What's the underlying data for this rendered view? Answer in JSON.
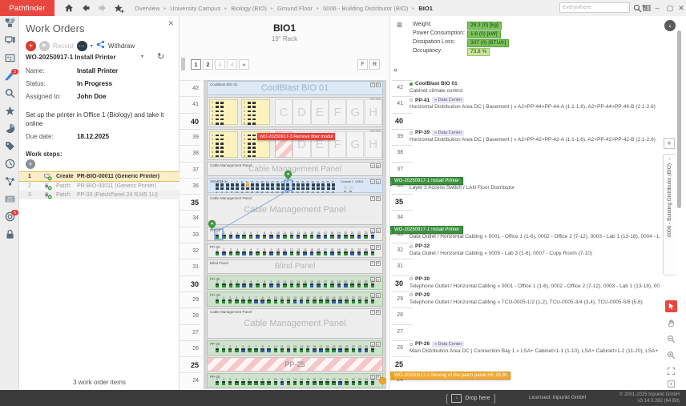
{
  "topbar": {
    "logo": "Pathfinder",
    "breadcrumb": [
      "Overview",
      "University Campus",
      "Biology (BIO)",
      "Ground Floor",
      "0006 - Building Distributor (BIO)",
      "BIO1"
    ],
    "search": {
      "placeholder": "everywhere"
    },
    "window": {
      "help": "?",
      "minimize": "–",
      "maximize": "▢",
      "close": "✕"
    }
  },
  "sidebar": {
    "items": [
      {
        "id": "topology"
      },
      {
        "id": "devices"
      },
      {
        "id": "floorplan"
      },
      {
        "id": "work-orders",
        "badge": "3",
        "active": true
      },
      {
        "id": "search"
      },
      {
        "id": "favorites"
      },
      {
        "id": "reports"
      },
      {
        "id": "tags"
      },
      {
        "id": "history"
      },
      {
        "id": "connections"
      },
      {
        "id": "ip-addresses",
        "text1": "192",
        "text2": "0.0.1"
      },
      {
        "id": "alerts",
        "badge": "6"
      },
      {
        "id": "lock"
      }
    ]
  },
  "work_orders": {
    "title": "Work Orders",
    "close": "✕",
    "toolbar": {
      "add": "+",
      "record": "Record",
      "more": "•••",
      "withdraw": "Withdraw"
    },
    "selected": "WO-20250917-1 Install Printer",
    "refresh": "↻",
    "fields": [
      {
        "label": "Name:",
        "value": "Install Printer"
      },
      {
        "label": "Status:",
        "value": "In Progress"
      },
      {
        "label": "Assigned to:",
        "value": "John Doe"
      }
    ],
    "description": "Set up the printer in Office 1 (Biology) and take it online",
    "due": {
      "label": "Due date:",
      "value": "18.12.2025"
    },
    "steps_label": "Work steps:",
    "steps": [
      {
        "num": "1",
        "icon": "device-create",
        "action": "Create",
        "target": "PR-BIO-00011 (Generic Printer)",
        "selected": true
      },
      {
        "num": "2",
        "icon": "patch",
        "action": "Patch",
        "target": "PR-BIO-00011 (Generic Printer)",
        "selected": false
      },
      {
        "num": "3",
        "icon": "patch",
        "action": "Patch",
        "target": "PP-33 (PatchPanel 24 RJ45 1U)",
        "selected": false
      }
    ],
    "footer": "3 work order items"
  },
  "rack": {
    "title": "BIO1",
    "subtitle": "19\" Rack",
    "pager": [
      {
        "label": "1",
        "state": "selected"
      },
      {
        "label": "2",
        "state": "active"
      },
      {
        "label": "3",
        "state": "muted"
      },
      {
        "label": "4",
        "state": "muted"
      },
      {
        "label": "»",
        "state": "normal"
      }
    ],
    "view_buttons": [
      "F",
      "R"
    ],
    "collapse": "«",
    "module_chips": [
      "F",
      "R"
    ],
    "top_unit": 42,
    "bottom_unit": 24,
    "modules": [
      {
        "u": 42,
        "h": 1,
        "type": "plain",
        "bg": "blue",
        "label": "CoolBlast BIO 01",
        "center": "CoolBlast BIO 01",
        "center_size": 11,
        "center_color": "#9fb5ca"
      },
      {
        "u": 41,
        "h": 2,
        "type": "fiber",
        "letters": [
          "C",
          "D",
          "E",
          "F",
          "G",
          "H"
        ],
        "hatch_first": false
      },
      {
        "u": 39,
        "h": 2,
        "type": "fiber",
        "letters": [
          "D",
          "E",
          "F",
          "G",
          "H"
        ],
        "hatch_first": true,
        "banner": "WO-20250917-3 Remove fiber modul"
      },
      {
        "u": 37,
        "h": 1,
        "type": "plain",
        "bg": "gray",
        "label": "Cable Management Panel",
        "center": "Cable Management Panel",
        "center_size": 10
      },
      {
        "u": 36,
        "h": 1,
        "type": "switch",
        "label": "SW-BIO-1",
        "console_label": "Console 1",
        "usb_label": "USB A",
        "extra_ports": [
          "49",
          "50"
        ],
        "selected_port": 13
      },
      {
        "u": 35,
        "h": 2,
        "type": "plain",
        "bg": "gray",
        "label": "Cable Management Panel",
        "center": "Cable Management Panel",
        "center_size": 11
      },
      {
        "u": 33,
        "h": 1,
        "type": "pp",
        "label": "PP-33",
        "ports": 24,
        "bg": "gray",
        "pattern": "ggbbggbgbbggbggbbgbggbgb",
        "selected_port": 2
      },
      {
        "u": 32,
        "h": 1,
        "type": "pp",
        "label": "PP-32",
        "ports": 24,
        "bg": "gray",
        "pattern": "gbggbbggbgbggbbggbggbbgg"
      },
      {
        "u": 31,
        "h": 1,
        "type": "plain",
        "bg": "gray",
        "label": "Blind Panel",
        "center": "Blind Panel",
        "center_size": 10
      },
      {
        "u": 30,
        "h": 1,
        "type": "pp",
        "label": "PP-30",
        "ports": 24,
        "bg": "green",
        "pattern": "ggggbbggbbggggbbggbbgggg"
      },
      {
        "u": 29,
        "h": 1,
        "type": "pp",
        "label": "PP-29",
        "ports": 25,
        "bg": "green",
        "pattern": "ggggggbbggggbbggggbbggggg"
      },
      {
        "u": 28,
        "h": 2,
        "type": "plain",
        "bg": "gray",
        "label": "Cable Management Panel",
        "center": "Cable Management Panel",
        "center_size": 11
      },
      {
        "u": 26,
        "h": 1,
        "type": "pp",
        "label": "PP-26",
        "ports": 25,
        "bg": "green",
        "pattern": "ggggbggbbggbgggbbggbggbbg"
      },
      {
        "u": 25,
        "h": 1,
        "type": "hatch",
        "center": "PP-25",
        "center_size": 9
      },
      {
        "u": 24,
        "h": 1,
        "type": "pp",
        "label": "PP-25",
        "ports": 25,
        "bg": "green",
        "pattern": "ggggggggggbggggggggbggggg",
        "marker": "orange"
      }
    ]
  },
  "info": {
    "rows": [
      {
        "label": "Weight:",
        "value": "28.3 (0) [kg]",
        "light": false
      },
      {
        "label": "Power Consumption:",
        "value": "1.6 (0) [kW]",
        "light": false
      },
      {
        "label": "Dissipation Loss:",
        "value": "307 (0) [BTU/h]",
        "light": false
      },
      {
        "label": "Occupancy:",
        "value": "73.8 %",
        "light": true
      }
    ]
  },
  "unit_list": {
    "entries": [
      {
        "u": 42,
        "dot": "filled",
        "name": "CoolBlast BIO 01",
        "desc": "Cabinet climate control"
      },
      {
        "u": 41,
        "dot": "open",
        "name": "PP-41",
        "badge": "» Data Center",
        "desc": "Horizontal Distribution Area DC | Basement |  »  A2>PP-44>PP-44-A (1.1-1.6),  A2>PP-44>PP-44-B (2.1-2.6)"
      },
      {
        "u": 39,
        "dot": "open",
        "name": "PP-39",
        "badge": "» Data Center",
        "desc": "Horizontal Distribution Area DC | Basement |  »  A2>PP-42>PP-42-A (1.1-1.6),  A2>PP-42>PP-42-B (2.1-2.6)"
      },
      {
        "u": 36,
        "banner": "WO-20250917-1 Install Printer",
        "desc": "Layer 2 Access Switch / LAN Floor Distributor",
        "edgedot": "green"
      },
      {
        "u": 33,
        "banner": "WO-20250917-1 Install Printer",
        "desc": "Data Outlet / Horizontal Cabling  »  0001 - Office 1 (1-6),  0002 - Office 2 (7-12),  0003 - Lab 1 (13-18),  0004 - Lab 2 (19-24)",
        "edgedot": "green"
      },
      {
        "u": 32,
        "dot": "open",
        "name": "PP-32",
        "desc": "Data Outlet / Horizontal Cabling  »  0005 - Lab 3 (1-6),  0007 - Copy Room (7-10)"
      },
      {
        "u": 30,
        "dot": "open",
        "name": "PP-30",
        "desc": "Telephone Outlet / Horizontal Cabling  »  0001 - Office 1 (1-6),  0002 - Office 2 (7-12),  0003 - Lab 1 (13-18),  0004 - Lab 2 (19-24)"
      },
      {
        "u": 29,
        "dot": "open",
        "name": "PP-29",
        "desc": "Telephone Outlet / Horizontal Cabling  »  TCU-0005-1/2 (1,2),  TCU-0005-3/4 (3,4),  TCU-0005-5/6 (5,6)"
      },
      {
        "u": 26,
        "dot": "open",
        "name": "PP-26",
        "badge": "» Data Center",
        "desc": "Main Distribution Area DC | Connection Bay 1  »  LSA+ Cabinet>1-1 (1-10),  LSA+ Cabinet>1-2 (11-20),  LSA+ Cabinet>1-3 (21-25)"
      },
      {
        "u": 24,
        "banner_orange": "WO-20250917-2 Moving of the patch panel HE 25 BI",
        "edgedot": "orange"
      }
    ]
  },
  "right_rail": {
    "back": "‹",
    "plus": "+",
    "tab_chevron": "‹",
    "tab_label": "0006 - Building Distributor (BIO)"
  },
  "statusbar": {
    "drop": "Drop here",
    "licensed": "Licensed: tripunkt GmbH",
    "copyright": "© 2001-2025 tripunkt GmbH",
    "version": "v3.14.0.282 (64 Bit)"
  }
}
